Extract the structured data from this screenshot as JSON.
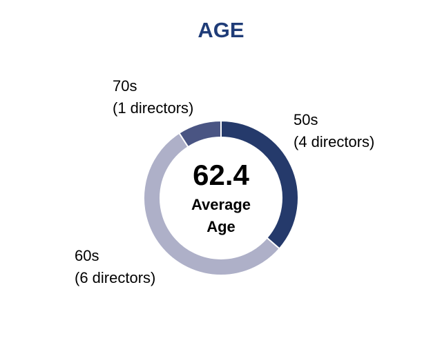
{
  "chart_data": {
    "type": "donut",
    "title": "AGE",
    "categories": [
      "50s",
      "60s",
      "70s"
    ],
    "values": [
      4,
      6,
      1
    ],
    "value_labels": [
      "(4 directors)",
      "(6 directors)",
      "(1 directors)"
    ],
    "colors": [
      "#253a6b",
      "#aeb0c8",
      "#4a5583"
    ],
    "center_value": 62.4,
    "center_label_lines": [
      "Average",
      "Age"
    ]
  }
}
